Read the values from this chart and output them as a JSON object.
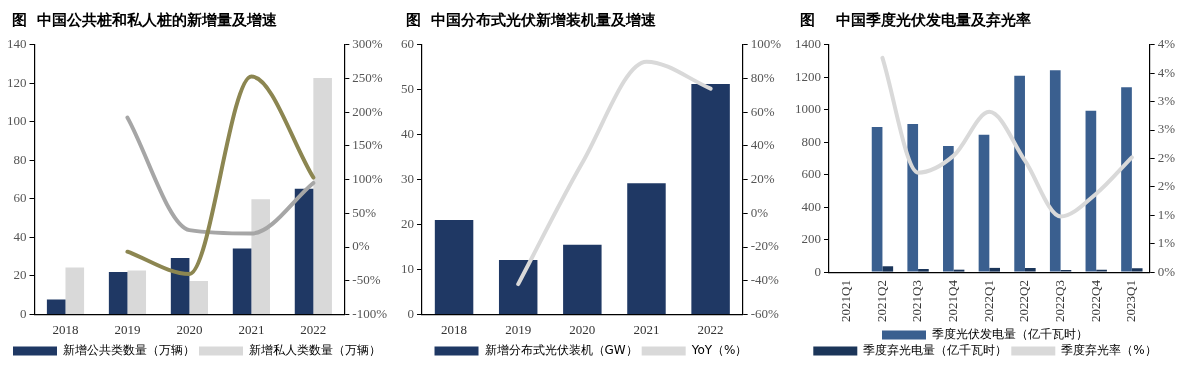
{
  "chart_data": [
    {
      "type": "bar",
      "title": "图  中国公共桩和私人桩的新增量及增速",
      "categories": [
        "2018",
        "2019",
        "2020",
        "2021",
        "2022"
      ],
      "series": [
        {
          "name": "新增公共类数量（万辆）",
          "color": "#1f3864",
          "values": [
            7.7,
            22,
            29.3,
            34.2,
            65.3
          ]
        },
        {
          "name": "新增私人类数量（万辆）",
          "color": "#d9d9d9",
          "values": [
            24.4,
            22.8,
            17.3,
            59.8,
            122.7
          ]
        },
        {
          "type": "line",
          "axis": "y2",
          "color": "#8c8651",
          "values": [
            null,
            -7,
            -40,
            253,
            103
          ]
        },
        {
          "type": "line",
          "axis": "y2",
          "color": "#a6a6a6",
          "values": [
            null,
            192,
            25,
            20,
            95
          ]
        }
      ],
      "ylim": [
        0,
        140
      ],
      "yticks": [
        0,
        20,
        40,
        60,
        80,
        100,
        120,
        140
      ],
      "y2lim": [
        -100,
        300
      ],
      "y2ticks": [
        {
          "value": -100,
          "label": "-100%"
        },
        {
          "value": -50,
          "label": "-50%"
        },
        {
          "value": 0,
          "label": "0%"
        },
        {
          "value": 50,
          "label": "50%"
        },
        {
          "value": 100,
          "label": "100%"
        },
        {
          "value": 150,
          "label": "150%"
        },
        {
          "value": 200,
          "label": "200%"
        },
        {
          "value": 250,
          "label": "250%"
        },
        {
          "value": 300,
          "label": "300%"
        }
      ],
      "grid": false,
      "legend": "bottom",
      "marker": "none"
    },
    {
      "type": "bar",
      "title": "图  中国分布式光伏新增装机量及增速",
      "categories": [
        "2018",
        "2019",
        "2020",
        "2021",
        "2022"
      ],
      "series": [
        {
          "name": "新增分布式光伏装机（GW）",
          "color": "#1f3864",
          "values": [
            21,
            12.1,
            15.5,
            29.2,
            51.3
          ]
        },
        {
          "name": "YoY（%）",
          "type": "line",
          "axis": "y2",
          "color": "#d9d9d9",
          "values": [
            null,
            -42,
            30,
            90,
            74
          ]
        }
      ],
      "ylim": [
        0,
        60
      ],
      "yticks": [
        0,
        10,
        20,
        30,
        40,
        50,
        60
      ],
      "y2lim": [
        -60,
        100
      ],
      "y2ticks": [
        {
          "value": -60,
          "label": "-60%"
        },
        {
          "value": -40,
          "label": "-40%"
        },
        {
          "value": -20,
          "label": "-20%"
        },
        {
          "value": 0,
          "label": "0%"
        },
        {
          "value": 20,
          "label": "20%"
        },
        {
          "value": 40,
          "label": "40%"
        },
        {
          "value": 60,
          "label": "60%"
        },
        {
          "value": 80,
          "label": "80%"
        },
        {
          "value": 100,
          "label": "100%"
        }
      ],
      "grid": false,
      "legend": "bottom",
      "marker": "none"
    },
    {
      "type": "bar",
      "title": "图    中国季度光伏发电量及弃光率",
      "categories": [
        "2021Q1",
        "2021Q2",
        "2021Q3",
        "2021Q4",
        "2022Q1",
        "2022Q2",
        "2022Q3",
        "2022Q4",
        "2023Q1"
      ],
      "series": [
        {
          "name": "季度光伏发电量（亿千瓦时）",
          "color": "#3a5f8f",
          "values": [
            null,
            893,
            912,
            776,
            846,
            1209,
            1244,
            994,
            1139
          ]
        },
        {
          "name": "季度弃光电量（亿千瓦时）",
          "color": "#1b3559",
          "values": [
            null,
            36,
            19,
            15,
            26,
            26,
            13,
            15,
            24
          ]
        },
        {
          "name": "季度弃光率（%）",
          "type": "line",
          "axis": "y2",
          "color": "#d9d9d9",
          "values": [
            null,
            3.77,
            1.75,
            2.05,
            2.82,
            1.96,
            0.98,
            1.38,
            2.02
          ]
        }
      ],
      "ylim": [
        0,
        1400
      ],
      "yticks": [
        0,
        200,
        400,
        600,
        800,
        1000,
        1200,
        1400
      ],
      "y2lim": [
        0,
        4
      ],
      "y2ticks": [
        {
          "value": 0,
          "label": "0%"
        },
        {
          "value": 0.5,
          "label": "1%"
        },
        {
          "value": 1,
          "label": "1%"
        },
        {
          "value": 1.5,
          "label": "2%"
        },
        {
          "value": 2,
          "label": "2%"
        },
        {
          "value": 2.5,
          "label": "3%"
        },
        {
          "value": 3,
          "label": "3%"
        },
        {
          "value": 3.5,
          "label": "4%"
        },
        {
          "value": 4,
          "label": "4%"
        }
      ],
      "grid": false,
      "legend": "bottom",
      "marker": "none"
    }
  ]
}
